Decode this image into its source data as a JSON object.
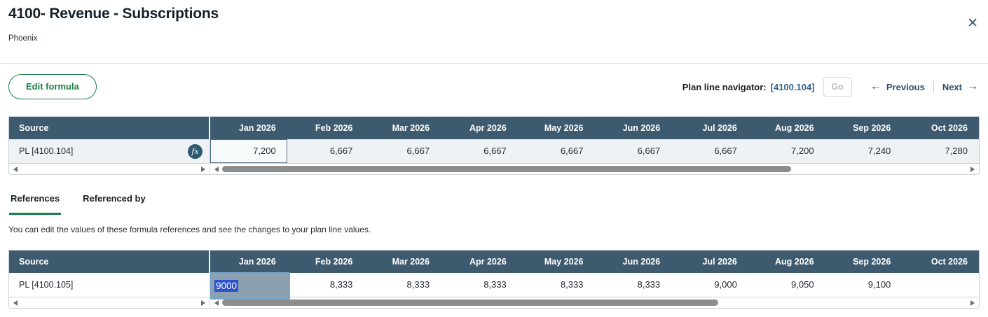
{
  "page": {
    "title": "4100- Revenue - Subscriptions",
    "subtitle": "Phoenix",
    "close_icon": "✕"
  },
  "toolbar": {
    "edit_formula": "Edit formula",
    "navigator_label": "Plan line navigator:",
    "navigator_value": "[4100.104]",
    "go": "Go",
    "previous": "Previous",
    "next": "Next",
    "previous_arrow": "←",
    "next_arrow": "→"
  },
  "columns": {
    "source": "Source"
  },
  "months": [
    "Jan 2026",
    "Feb 2026",
    "Mar 2026",
    "Apr 2026",
    "May 2026",
    "Jun 2026",
    "Jul 2026",
    "Aug 2026",
    "Sep 2026",
    "Oct 2026"
  ],
  "plan_table": {
    "source": "PL [4100.104]",
    "fx_icon": "fx",
    "selected_month": "Jan 2026",
    "values": [
      "7,200",
      "6,667",
      "6,667",
      "6,667",
      "6,667",
      "6,667",
      "6,667",
      "7,200",
      "7,240",
      "7,280"
    ]
  },
  "tabs": [
    {
      "label": "References",
      "active": true
    },
    {
      "label": "Referenced by",
      "active": false
    }
  ],
  "description": "You can edit the values of these formula references and see the changes to your plan line values.",
  "reference_table": {
    "source": "PL [4100.105]",
    "editing_month": "Jan 2026",
    "editing_value": "9000",
    "values": [
      "8,333",
      "8,333",
      "8,333",
      "8,333",
      "8,333",
      "8,333",
      "9,000",
      "9,050",
      "9,100"
    ]
  },
  "colors": {
    "table_header_bg": "#3d5a6e",
    "accent_green": "#1e7e46",
    "link_blue": "#35628a",
    "selection_blue": "#2e51c9",
    "edit_cell_bg": "#8ba1b1",
    "edit_cell_border": "#78a5cc"
  }
}
